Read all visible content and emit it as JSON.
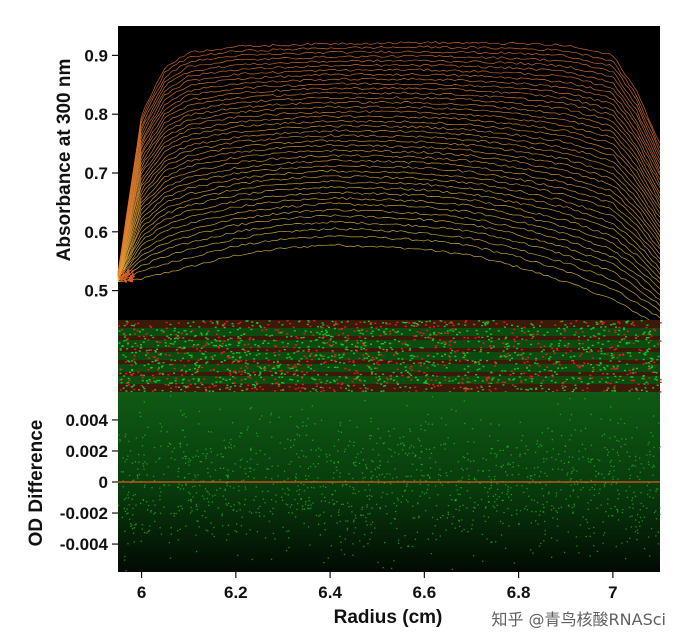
{
  "chart_data": {
    "type": "line",
    "xlabel": "Radius (cm)",
    "xlim": [
      5.95,
      7.1
    ],
    "xticks": [
      "6",
      "6.2",
      "6.4",
      "6.6",
      "6.8",
      "7"
    ],
    "colors": {
      "background": "#000000",
      "scan_early": "#e8c23a",
      "scan_late": "#e2582a",
      "residual_primary": "#22c02a",
      "residual_secondary": "#e02020",
      "zero_line": "#e05a20"
    },
    "panels": [
      {
        "name": "absorbance-scans",
        "ylabel": "Absorbance at 300 nm",
        "ylim": [
          0.45,
          0.95
        ],
        "yticks": [
          "0.5",
          "0.6",
          "0.7",
          "0.8",
          "0.9"
        ],
        "meniscus_radius": 5.95,
        "bottom_radius": 7.1,
        "series_count": 40,
        "first_scan": {
          "x": [
            5.95,
            6.0,
            6.1,
            6.2,
            6.3,
            6.4,
            6.5,
            6.6,
            6.7,
            6.8,
            6.9,
            7.0,
            7.1
          ],
          "y": [
            0.515,
            0.52,
            0.54,
            0.56,
            0.572,
            0.578,
            0.575,
            0.57,
            0.56,
            0.54,
            0.515,
            0.485,
            0.44
          ]
        },
        "last_scan": {
          "x": [
            5.95,
            6.0,
            6.05,
            6.1,
            6.2,
            6.4,
            6.6,
            6.8,
            6.9,
            7.0,
            7.05,
            7.1
          ],
          "y": [
            0.53,
            0.8,
            0.88,
            0.905,
            0.915,
            0.92,
            0.922,
            0.92,
            0.917,
            0.9,
            0.84,
            0.75
          ]
        }
      },
      {
        "name": "residual-bitmap"
      },
      {
        "name": "od-difference",
        "ylabel": "OD Difference",
        "ylim": [
          -0.0058,
          0.0058
        ],
        "yticks": [
          "0.004",
          "0.002",
          "0",
          "-0.002",
          "-0.004"
        ],
        "ytick_values": [
          0.004,
          0.002,
          0,
          -0.002,
          -0.004
        ],
        "zero_line": 0
      }
    ]
  },
  "watermark": "知乎 @青鸟核酸RNASci"
}
